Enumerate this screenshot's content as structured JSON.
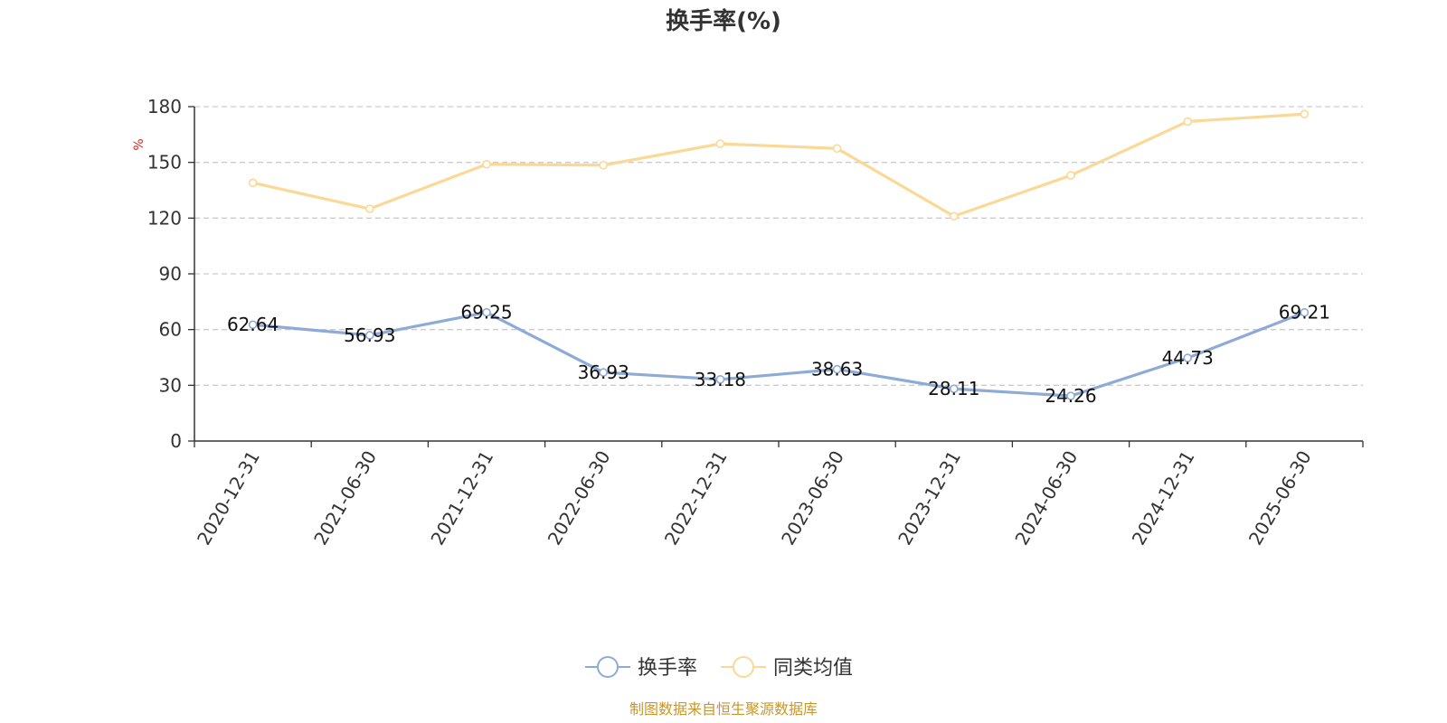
{
  "chart_data": {
    "type": "line",
    "title": "换手率(%)",
    "y_unit": "%",
    "categories": [
      "2020-12-31",
      "2021-06-30",
      "2021-12-31",
      "2022-06-30",
      "2022-12-31",
      "2023-06-30",
      "2023-12-31",
      "2024-06-30",
      "2024-12-31",
      "2025-06-30"
    ],
    "ylim": [
      0,
      180
    ],
    "y_ticks": [
      0,
      30,
      60,
      90,
      120,
      150,
      180
    ],
    "grid": true,
    "legend_position": "bottom-center",
    "series": [
      {
        "name": "换手率",
        "color": "#8eaad6",
        "values": [
          62.64,
          56.93,
          69.25,
          36.93,
          33.18,
          38.63,
          28.11,
          24.26,
          44.73,
          69.21
        ],
        "labels": [
          "62.64",
          "56.93",
          "69.25",
          "36.93",
          "33.18",
          "38.63",
          "28.11",
          "24.26",
          "44.73",
          "69.21"
        ]
      },
      {
        "name": "同类均值",
        "color": "#fbd895",
        "values": [
          139,
          125,
          149,
          148.5,
          160,
          157.5,
          121,
          143,
          172,
          176
        ]
      }
    ],
    "source": "制图数据来自恒生聚源数据库"
  }
}
